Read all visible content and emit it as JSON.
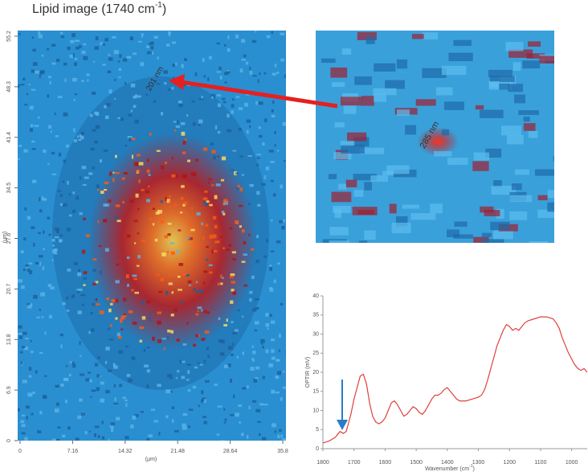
{
  "title": "Lipid image (1740 cm",
  "title_sup": "-1",
  "title_end": ")",
  "chart_data": [
    {
      "type": "image",
      "xlabel": "(μm)",
      "ylabel": "(μm)",
      "xlim": [
        0,
        35.8
      ],
      "ylim": [
        0,
        55.2
      ],
      "xticks": [
        0,
        7.16,
        14.32,
        21.48,
        28.64,
        35.8
      ],
      "yticks": [
        0,
        6.9,
        13.8,
        20.7,
        27.6,
        34.5,
        41.4,
        48.3,
        55.2
      ],
      "annotation": "201 nm",
      "zoom_annotation": "285 nm"
    },
    {
      "type": "line",
      "ylabel": "OPTIR (mV)",
      "xlabel": "Wavenumber (cm",
      "xlabel_sup": "-1",
      "xlabel_end": ")",
      "xlim": [
        1800,
        950
      ],
      "ylim": [
        0,
        40
      ],
      "xticks": [
        1800,
        1700,
        1600,
        1500,
        1400,
        1300,
        1200,
        1100,
        1000
      ],
      "yticks": [
        0,
        5,
        10,
        15,
        20,
        25,
        30,
        35,
        40
      ],
      "x": [
        1800,
        1780,
        1760,
        1745,
        1735,
        1725,
        1710,
        1700,
        1690,
        1680,
        1670,
        1660,
        1650,
        1640,
        1630,
        1620,
        1610,
        1600,
        1590,
        1580,
        1570,
        1560,
        1550,
        1540,
        1530,
        1520,
        1510,
        1500,
        1490,
        1480,
        1470,
        1460,
        1450,
        1440,
        1430,
        1420,
        1410,
        1400,
        1390,
        1380,
        1370,
        1360,
        1350,
        1340,
        1320,
        1300,
        1290,
        1280,
        1270,
        1260,
        1250,
        1240,
        1230,
        1220,
        1210,
        1200,
        1190,
        1180,
        1170,
        1160,
        1150,
        1140,
        1120,
        1100,
        1080,
        1060,
        1050,
        1040,
        1030,
        1020,
        1010,
        1000,
        990,
        980,
        970,
        960,
        950
      ],
      "series": [
        {
          "color": "#e0403a",
          "values": [
            1.5,
            2,
            3,
            4.5,
            4,
            4.5,
            9,
            13,
            16,
            19,
            19.5,
            17,
            12,
            8.5,
            7,
            6.5,
            7,
            8,
            10,
            12,
            12.5,
            11.5,
            10,
            8.5,
            9,
            10,
            11,
            10.5,
            9.5,
            9,
            10,
            11.5,
            13,
            14,
            14,
            14.5,
            15.5,
            16,
            15,
            14,
            13,
            12.5,
            12.5,
            12.5,
            13,
            13.5,
            14,
            15.5,
            18,
            21,
            24,
            27,
            29,
            31,
            32.5,
            32,
            31,
            31.5,
            31,
            32,
            33,
            33.5,
            34,
            34.5,
            34.5,
            34,
            33,
            31.5,
            29,
            27,
            25,
            23.5,
            22,
            21,
            20.5,
            21,
            20
          ]
        }
      ]
    }
  ]
}
